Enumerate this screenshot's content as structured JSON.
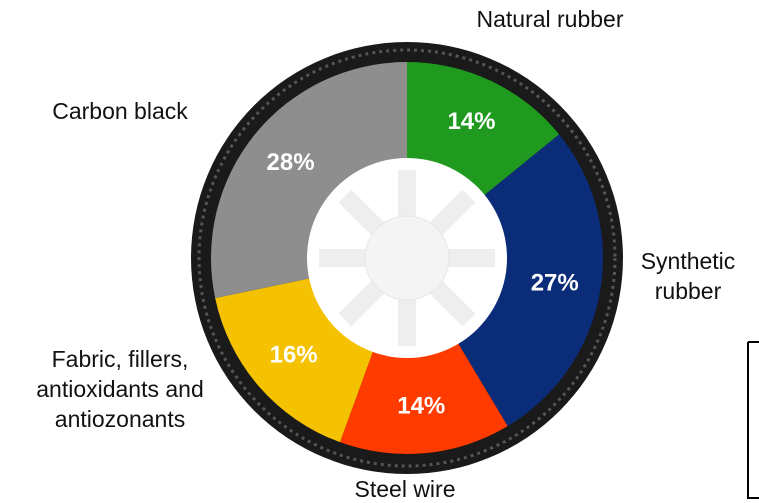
{
  "chart_data": {
    "type": "donut",
    "categories": [
      "Natural rubber",
      "Synthetic rubber",
      "Steel wire",
      "Fabric, fillers, antioxidants and antiozonants",
      "Carbon black"
    ],
    "values": [
      14,
      27,
      14,
      16,
      28
    ],
    "value_labels": [
      "14%",
      "27%",
      "14%",
      "16%",
      "28%"
    ],
    "colors": [
      "#1f9a1f",
      "#0b2c78",
      "#ff3b00",
      "#f4c200",
      "#8e8e8e"
    ]
  }
}
